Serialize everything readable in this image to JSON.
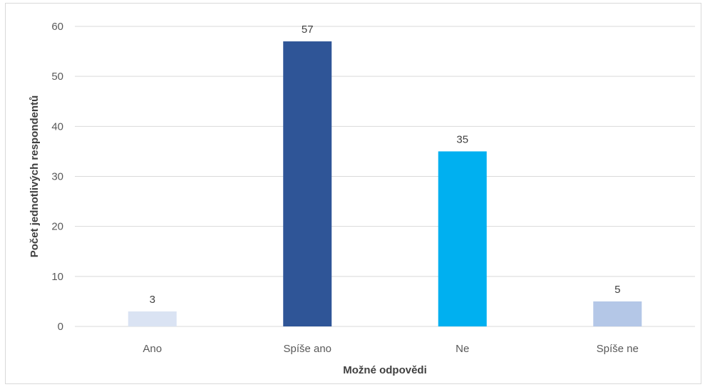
{
  "chart_data": {
    "type": "bar",
    "categories": [
      "Ano",
      "Spíše ano",
      "Ne",
      "Spíše ne"
    ],
    "values": [
      3,
      57,
      35,
      5
    ],
    "colors": [
      "#dae3f3",
      "#2f5597",
      "#00b0f0",
      "#b4c7e7"
    ],
    "title": "",
    "xlabel": "Možné odpovědi",
    "ylabel": "Počet jednotlivých respondentů",
    "ylim": [
      0,
      60
    ],
    "yticks": [
      0,
      10,
      20,
      30,
      40,
      50,
      60
    ],
    "grid": true,
    "data_labels": true
  }
}
